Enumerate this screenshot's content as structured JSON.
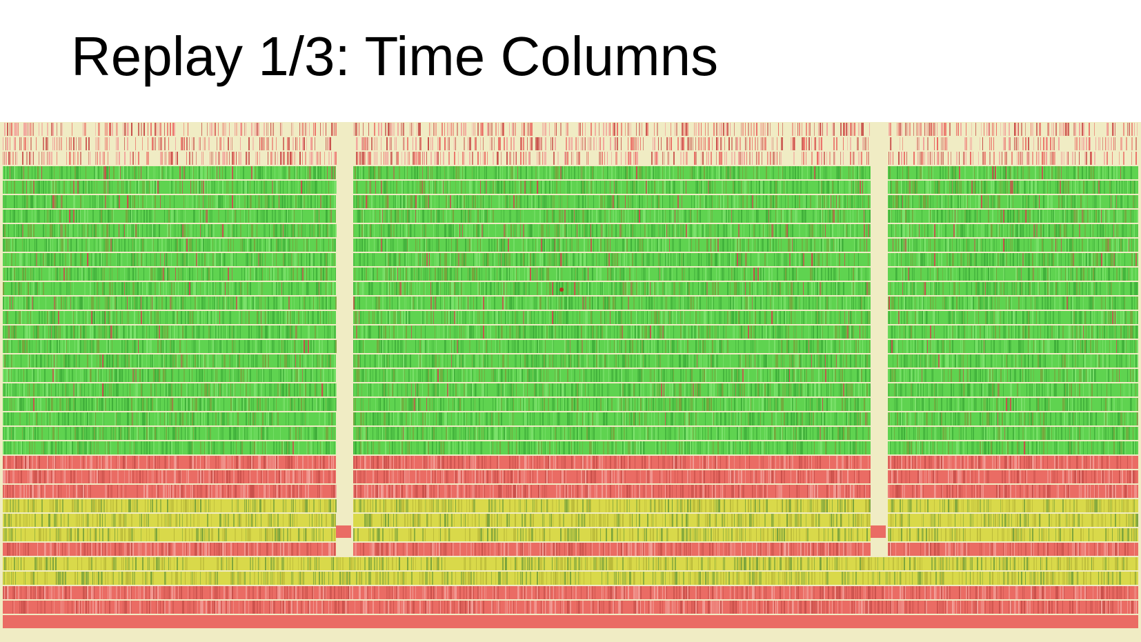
{
  "slide": {
    "title": "Replay 1/3: Time Columns"
  },
  "colors": {
    "background": "#ffffff",
    "title": "#000000",
    "idle_cream": "#f0ecc4",
    "bright_green": "#7ee26e",
    "green": "#5fd350",
    "dark_green": "#3fae3a",
    "olive_green": "#79a23c",
    "red": "#ea6c64",
    "dark_red": "#c8504a",
    "light_red": "#f2a19a",
    "yellow": "#d9d94a",
    "dark_yellow": "#b9b93a"
  },
  "replay_visualization": {
    "type": "time-column strip heatmap",
    "row_bands": [
      {
        "kind": "sparse-red",
        "rows": 3
      },
      {
        "kind": "green",
        "rows": 20
      },
      {
        "kind": "red",
        "rows": 3
      },
      {
        "kind": "yellow",
        "rows": 3
      },
      {
        "kind": "red",
        "rows": 1
      },
      {
        "kind": "yellow",
        "rows": 2
      },
      {
        "kind": "red",
        "rows": 2
      },
      {
        "kind": "solid-red",
        "rows": 1
      }
    ],
    "idle_gaps": 2
  }
}
